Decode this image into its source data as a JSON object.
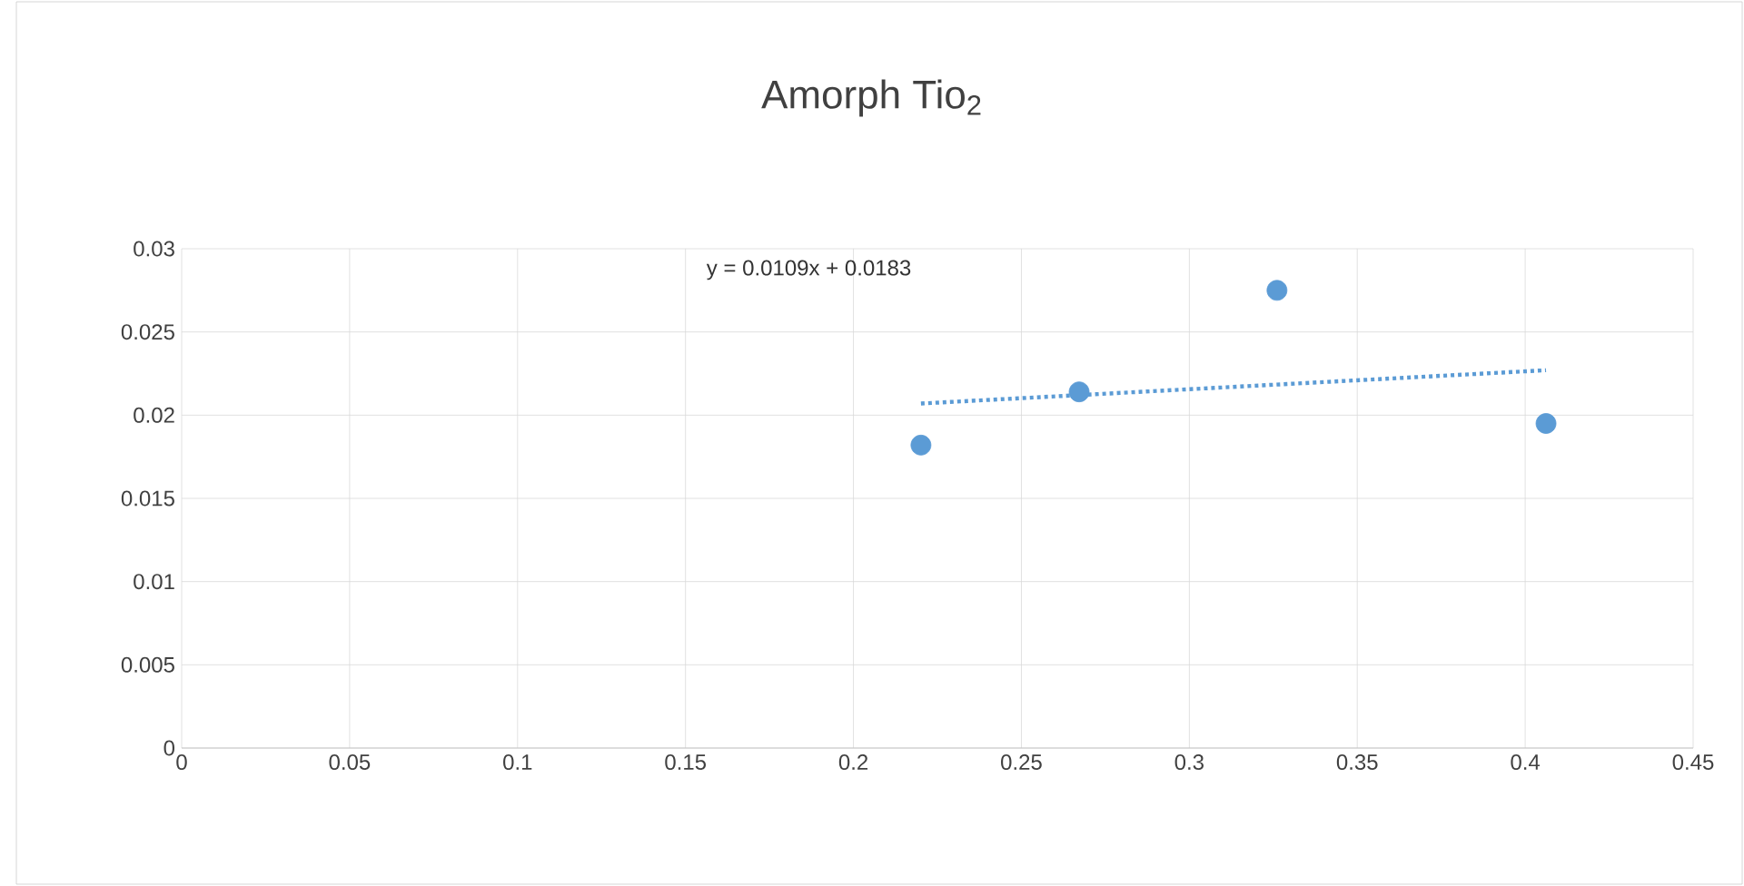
{
  "chart_data": {
    "type": "scatter",
    "title": "Amorph Tio$_{2}$",
    "series": [
      {
        "color": "#5b9bd5",
        "x": [
          0.2201,
          0.2672,
          0.3261,
          0.4062
        ],
        "values": [
          0.0182,
          0.0214,
          0.0275,
          0.0195
        ],
        "marker": "circle"
      },
      {
        "type": "line",
        "color": "#5b9bd5",
        "x": [
          0.2201,
          0.4062
        ],
        "values": [
          0.0207,
          0.0227
        ],
        "line_style": "dotted",
        "marker": "none"
      }
    ],
    "annotations": [
      "y = 0.0109x + 0.0183"
    ],
    "xlim": [
      0,
      0.45
    ],
    "xticks": [
      0,
      0.05,
      0.1,
      0.15,
      0.2,
      0.25,
      0.3,
      0.35,
      0.4,
      0.45
    ],
    "ylim": [
      0,
      0.03
    ],
    "yticks": [
      0,
      0.005,
      0.01,
      0.015,
      0.02,
      0.025,
      0.03
    ],
    "grid": true
  }
}
